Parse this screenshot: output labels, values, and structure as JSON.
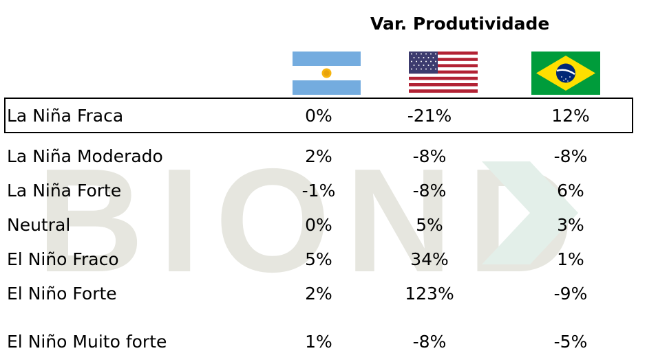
{
  "header": {
    "title": "Var. Produtividade",
    "countries": [
      {
        "flag": "argentina-flag-icon"
      },
      {
        "flag": "usa-flag-icon"
      },
      {
        "flag": "brazil-flag-icon"
      }
    ]
  },
  "watermark": {
    "text": "BIOND"
  },
  "rows": [
    {
      "label": "La Niña Fraca",
      "values": [
        "0%",
        "-21%",
        "12%"
      ]
    },
    {
      "label": "La Niña Moderado",
      "values": [
        "2%",
        "-8%",
        "-8%"
      ]
    },
    {
      "label": "La Niña Forte",
      "values": [
        "-1%",
        "-8%",
        "6%"
      ]
    },
    {
      "label": "Neutral",
      "values": [
        "0%",
        "5%",
        "3%"
      ]
    },
    {
      "label": "El Niño Fraco",
      "values": [
        "5%",
        "34%",
        "1%"
      ]
    },
    {
      "label": "El Niño Forte",
      "values": [
        "2%",
        "123%",
        "-9%"
      ]
    },
    {
      "label": "El Niño Muito forte",
      "values": [
        "1%",
        "-8%",
        "-5%"
      ]
    }
  ],
  "colors": {
    "watermark_gray": "#e6e6df",
    "watermark_green": "#e3efe9",
    "argentina_blue": "#74acdf",
    "usa_red": "#b22234",
    "usa_blue": "#3c3b6e",
    "brazil_green": "#009c3b",
    "brazil_yellow": "#ffdf00",
    "brazil_blue": "#002776"
  }
}
